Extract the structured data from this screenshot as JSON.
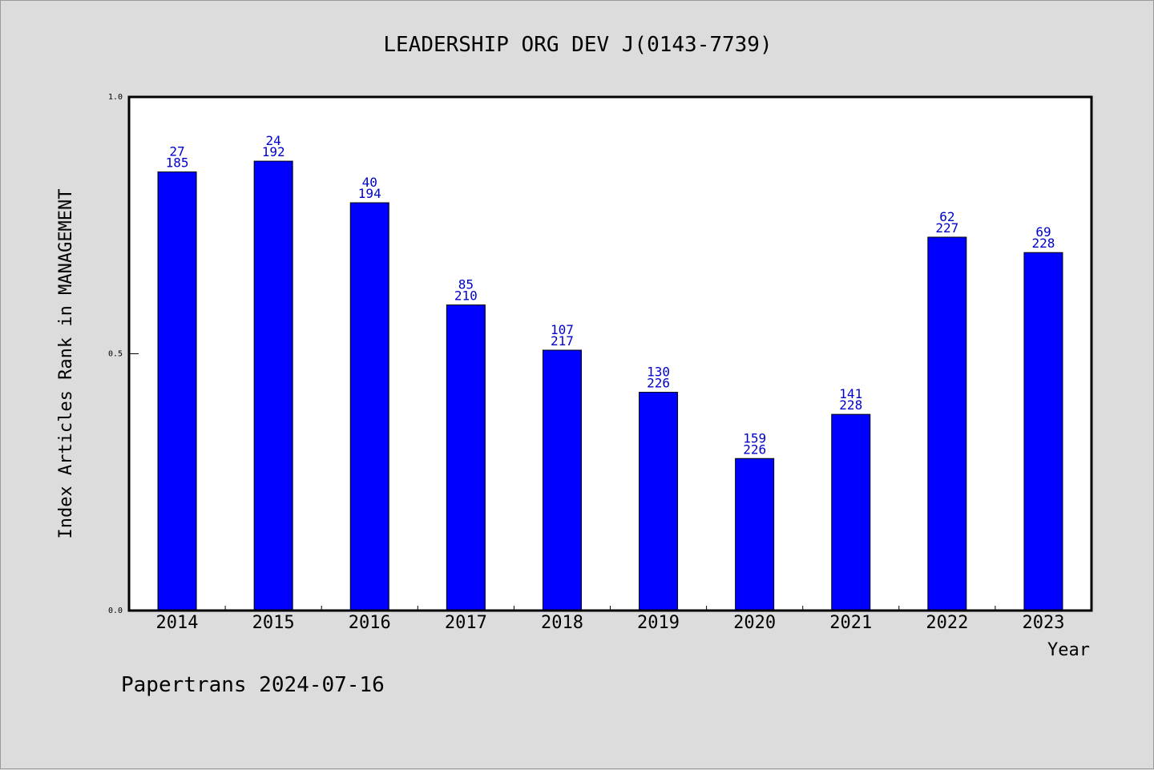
{
  "chart_data": {
    "type": "bar",
    "title": "LEADERSHIP ORG DEV J(0143-7739)",
    "xlabel": "Year",
    "ylabel": "Index Articles Rank in MANAGEMENT",
    "ylim": [
      0,
      1
    ],
    "yticks": [
      "0.0",
      "0.5",
      "1.0"
    ],
    "categories": [
      "2014",
      "2015",
      "2016",
      "2017",
      "2018",
      "2019",
      "2020",
      "2021",
      "2022",
      "2023"
    ],
    "values": [
      0.854,
      0.875,
      0.794,
      0.595,
      0.507,
      0.425,
      0.296,
      0.382,
      0.727,
      0.697
    ],
    "rank_labels": [
      "27",
      "24",
      "40",
      "85",
      "107",
      "130",
      "159",
      "141",
      "62",
      "69"
    ],
    "total_labels": [
      "185",
      "192",
      "194",
      "210",
      "217",
      "226",
      "226",
      "228",
      "227",
      "228"
    ],
    "bar_color": "#0000ff",
    "label_color": "#0000cc",
    "grid": false
  },
  "footer": "Papertrans 2024-07-16"
}
